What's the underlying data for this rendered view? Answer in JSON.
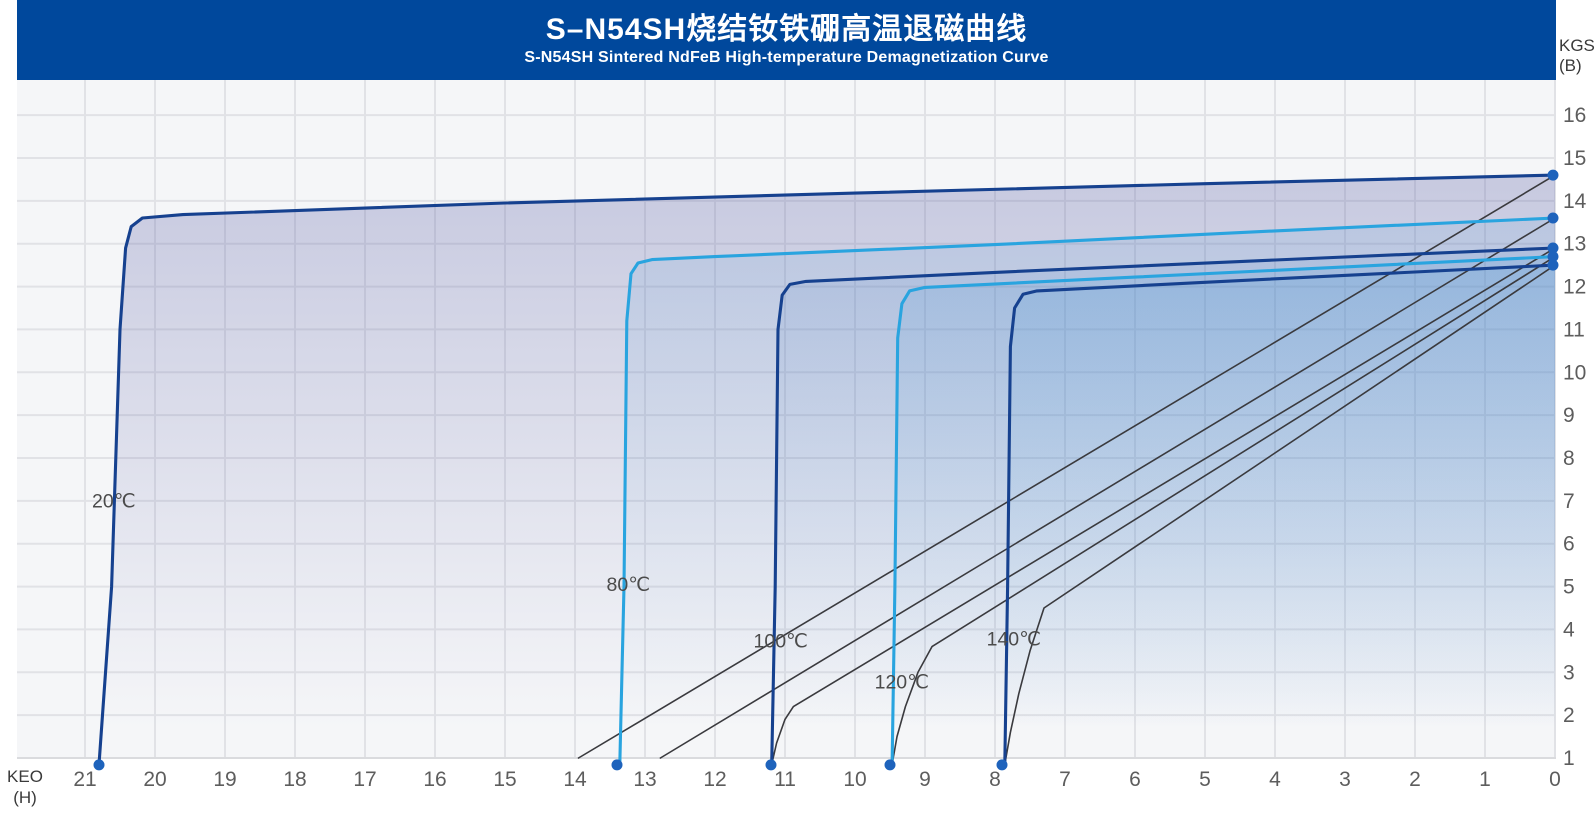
{
  "header": {
    "title_zh": "S–N54SH烧结钕铁硼高温退磁曲线",
    "subtitle_en": "S-N54SH Sintered NdFeB High-temperature Demagnetization Curve",
    "bg_color": "#00489C"
  },
  "chart_data": {
    "type": "line",
    "title": "S–N54SH烧结钕铁硼高温退磁曲线",
    "subtitle": "S-N54SH Sintered NdFeB High-temperature Demagnetization Curve",
    "x_axis": {
      "label": "KEO",
      "unit": "(H)",
      "min": 0,
      "max": 22,
      "reversed": true,
      "ticks": [
        21,
        20,
        19,
        18,
        17,
        16,
        15,
        14,
        13,
        12,
        11,
        10,
        9,
        8,
        7,
        6,
        5,
        4,
        3,
        2,
        1,
        0
      ]
    },
    "y_axis": {
      "label": "KGS",
      "unit": "(B)",
      "min": 1,
      "max": 16.8,
      "ticks": [
        16,
        15,
        14,
        13,
        12,
        11,
        10,
        9,
        8,
        7,
        6,
        5,
        4,
        3,
        2,
        1
      ]
    },
    "grid": true,
    "legend_position": "on-curve",
    "point_color": "#1E63BC",
    "normal_line_color": "#3A3A3E",
    "series": [
      {
        "name": "20℃",
        "temperature_c": 20,
        "color": "#16418F",
        "Br_kGs": 14.6,
        "Hci_kOe": 20.8,
        "intrinsic": [
          [
            20.8,
            0.85
          ],
          [
            20.62,
            5
          ],
          [
            20.5,
            11
          ],
          [
            20.42,
            12.9
          ],
          [
            20.34,
            13.4
          ],
          [
            20.18,
            13.6
          ],
          [
            19.6,
            13.68
          ],
          [
            15,
            13.95
          ],
          [
            10,
            14.18
          ],
          [
            5,
            14.4
          ],
          [
            0,
            14.6
          ]
        ],
        "normal": [
          [
            13.95,
            1.0
          ],
          [
            0,
            14.6
          ]
        ],
        "fill_rgba": "rgba(93,98,168,0.30)",
        "label_pos": [
          20.9,
          6.85
        ]
      },
      {
        "name": "80℃",
        "temperature_c": 80,
        "color": "#29A4DF",
        "Br_kGs": 13.6,
        "Hci_kOe": 13.4,
        "intrinsic": [
          [
            13.36,
            0.85
          ],
          [
            13.3,
            5
          ],
          [
            13.26,
            11.2
          ],
          [
            13.2,
            12.3
          ],
          [
            13.1,
            12.55
          ],
          [
            12.9,
            12.63
          ],
          [
            12,
            12.7
          ],
          [
            8,
            12.98
          ],
          [
            4,
            13.3
          ],
          [
            0,
            13.6
          ]
        ],
        "normal": [
          [
            12.78,
            1.0
          ],
          [
            0,
            13.6
          ]
        ],
        "fill_rgba": "rgba(64,150,214,0.12)",
        "label_pos": [
          13.55,
          4.9
        ]
      },
      {
        "name": "100℃",
        "temperature_c": 100,
        "color": "#16418F",
        "Br_kGs": 12.9,
        "Hci_kOe": 11.2,
        "intrinsic": [
          [
            11.19,
            0.85
          ],
          [
            11.14,
            5
          ],
          [
            11.1,
            11.0
          ],
          [
            11.04,
            11.8
          ],
          [
            10.93,
            12.05
          ],
          [
            10.7,
            12.12
          ],
          [
            8,
            12.33
          ],
          [
            4,
            12.62
          ],
          [
            0,
            12.9
          ]
        ],
        "normal": [
          [
            11.19,
            0.85
          ],
          [
            11.12,
            1.35
          ],
          [
            11.0,
            1.9
          ],
          [
            10.88,
            2.2
          ],
          [
            0,
            12.9
          ]
        ],
        "fill_rgba": "rgba(50,110,190,0.10)",
        "label_pos": [
          11.45,
          3.58
        ]
      },
      {
        "name": "120℃",
        "temperature_c": 120,
        "color": "#29A4DF",
        "Br_kGs": 12.7,
        "Hci_kOe": 9.5,
        "intrinsic": [
          [
            9.47,
            0.85
          ],
          [
            9.43,
            5
          ],
          [
            9.39,
            10.8
          ],
          [
            9.33,
            11.6
          ],
          [
            9.22,
            11.9
          ],
          [
            9.0,
            11.98
          ],
          [
            6,
            12.22
          ],
          [
            3,
            12.46
          ],
          [
            0,
            12.7
          ]
        ],
        "normal": [
          [
            9.47,
            0.85
          ],
          [
            9.4,
            1.5
          ],
          [
            9.28,
            2.2
          ],
          [
            9.1,
            3.0
          ],
          [
            8.9,
            3.6
          ],
          [
            0,
            12.7
          ]
        ],
        "fill_rgba": "rgba(64,150,214,0.13)",
        "label_pos": [
          9.72,
          2.62
        ]
      },
      {
        "name": "140℃",
        "temperature_c": 140,
        "color": "#16418F",
        "Br_kGs": 12.5,
        "Hci_kOe": 7.9,
        "intrinsic": [
          [
            7.86,
            0.85
          ],
          [
            7.82,
            5
          ],
          [
            7.78,
            10.6
          ],
          [
            7.72,
            11.5
          ],
          [
            7.6,
            11.82
          ],
          [
            7.4,
            11.9
          ],
          [
            5,
            12.1
          ],
          [
            2.5,
            12.3
          ],
          [
            0,
            12.5
          ]
        ],
        "normal": [
          [
            7.86,
            0.85
          ],
          [
            7.78,
            1.6
          ],
          [
            7.66,
            2.5
          ],
          [
            7.5,
            3.5
          ],
          [
            7.3,
            4.5
          ],
          [
            0,
            12.5
          ]
        ],
        "fill_rgba": "rgba(64,150,214,0.13)",
        "label_pos": [
          8.12,
          3.62
        ]
      }
    ]
  }
}
